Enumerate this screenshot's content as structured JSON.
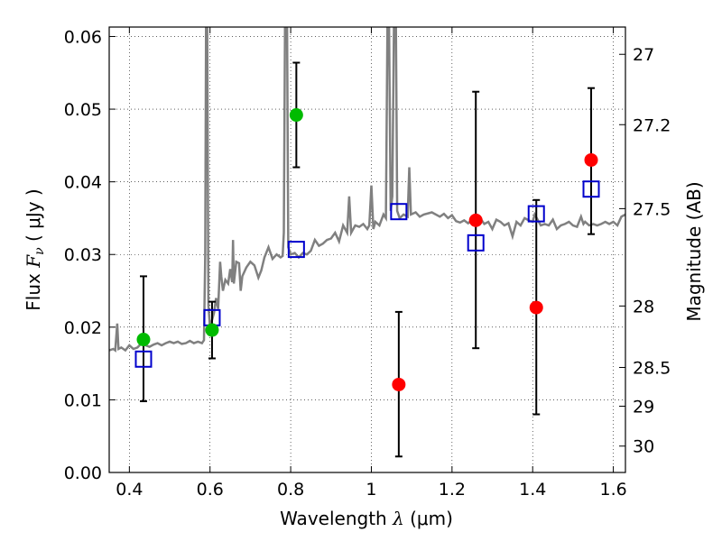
{
  "chart_data": {
    "type": "scatter",
    "xlabel_text": "Wavelength  ",
    "xlabel_symbol": "λ",
    "xlabel_unit": " (μm)",
    "ylabel_text": "Flux  ",
    "ylabel_symbol": "F",
    "ylabel_sub": "ν",
    "ylabel_unit": "  ( μJy )",
    "y2label": "Magnitude (AB)",
    "xlim": [
      0.35,
      1.63
    ],
    "ylim": [
      0.0,
      0.0613
    ],
    "grid": true,
    "x_ticks": [
      {
        "value": 0.4,
        "label": "0.4"
      },
      {
        "value": 0.6,
        "label": "0.6"
      },
      {
        "value": 0.8,
        "label": "0.8"
      },
      {
        "value": 1.0,
        "label": "1"
      },
      {
        "value": 1.2,
        "label": "1.2"
      },
      {
        "value": 1.4,
        "label": "1.4"
      },
      {
        "value": 1.6,
        "label": "1.6"
      }
    ],
    "y_ticks": [
      {
        "value": 0.0,
        "label": "0.00"
      },
      {
        "value": 0.01,
        "label": "0.01"
      },
      {
        "value": 0.02,
        "label": "0.02"
      },
      {
        "value": 0.03,
        "label": "0.03"
      },
      {
        "value": 0.04,
        "label": "0.04"
      },
      {
        "value": 0.05,
        "label": "0.05"
      },
      {
        "value": 0.06,
        "label": "0.06"
      }
    ],
    "y2_ticks": [
      {
        "mag": 27,
        "label": "27"
      },
      {
        "mag": 27.2,
        "label": "27.2"
      },
      {
        "mag": 27.5,
        "label": "27.5"
      },
      {
        "mag": 28,
        "label": "28"
      },
      {
        "mag": 28.5,
        "label": "28.5"
      },
      {
        "mag": 29,
        "label": "29"
      },
      {
        "mag": 30,
        "label": "30"
      }
    ],
    "colors": {
      "model": "#808080",
      "green": "#00bb00",
      "red": "#ff0000",
      "squares": "#0000cc",
      "errorbar": "#000000"
    },
    "model_spectrum": [
      [
        0.35,
        0.0168
      ],
      [
        0.36,
        0.017
      ],
      [
        0.365,
        0.0168
      ],
      [
        0.37,
        0.0205
      ],
      [
        0.373,
        0.017
      ],
      [
        0.38,
        0.0172
      ],
      [
        0.39,
        0.0168
      ],
      [
        0.4,
        0.0175
      ],
      [
        0.41,
        0.017
      ],
      [
        0.42,
        0.0172
      ],
      [
        0.43,
        0.0178
      ],
      [
        0.44,
        0.0175
      ],
      [
        0.45,
        0.0173
      ],
      [
        0.46,
        0.0176
      ],
      [
        0.47,
        0.0178
      ],
      [
        0.48,
        0.0175
      ],
      [
        0.49,
        0.0178
      ],
      [
        0.5,
        0.018
      ],
      [
        0.51,
        0.0178
      ],
      [
        0.52,
        0.018
      ],
      [
        0.53,
        0.0177
      ],
      [
        0.54,
        0.0178
      ],
      [
        0.55,
        0.0181
      ],
      [
        0.56,
        0.0178
      ],
      [
        0.57,
        0.018
      ],
      [
        0.58,
        0.0178
      ],
      [
        0.585,
        0.0182
      ],
      [
        0.588,
        0.03
      ],
      [
        0.59,
        0.0615
      ],
      [
        0.593,
        0.0615
      ],
      [
        0.596,
        0.023
      ],
      [
        0.6,
        0.02
      ],
      [
        0.605,
        0.021
      ],
      [
        0.61,
        0.022
      ],
      [
        0.615,
        0.024
      ],
      [
        0.62,
        0.0225
      ],
      [
        0.625,
        0.029
      ],
      [
        0.628,
        0.027
      ],
      [
        0.632,
        0.025
      ],
      [
        0.638,
        0.0265
      ],
      [
        0.645,
        0.026
      ],
      [
        0.65,
        0.028
      ],
      [
        0.655,
        0.0262
      ],
      [
        0.657,
        0.032
      ],
      [
        0.659,
        0.026
      ],
      [
        0.665,
        0.029
      ],
      [
        0.672,
        0.0288
      ],
      [
        0.676,
        0.025
      ],
      [
        0.68,
        0.027
      ],
      [
        0.69,
        0.0282
      ],
      [
        0.7,
        0.029
      ],
      [
        0.71,
        0.0285
      ],
      [
        0.72,
        0.0268
      ],
      [
        0.727,
        0.0278
      ],
      [
        0.735,
        0.0296
      ],
      [
        0.745,
        0.031
      ],
      [
        0.755,
        0.0294
      ],
      [
        0.765,
        0.03
      ],
      [
        0.775,
        0.0296
      ],
      [
        0.78,
        0.0298
      ],
      [
        0.783,
        0.033
      ],
      [
        0.786,
        0.0615
      ],
      [
        0.791,
        0.0615
      ],
      [
        0.794,
        0.031
      ],
      [
        0.8,
        0.03
      ],
      [
        0.81,
        0.0302
      ],
      [
        0.82,
        0.0296
      ],
      [
        0.83,
        0.0302
      ],
      [
        0.84,
        0.03
      ],
      [
        0.85,
        0.0305
      ],
      [
        0.86,
        0.032
      ],
      [
        0.87,
        0.0312
      ],
      [
        0.88,
        0.0315
      ],
      [
        0.89,
        0.032
      ],
      [
        0.9,
        0.0322
      ],
      [
        0.91,
        0.033
      ],
      [
        0.92,
        0.0318
      ],
      [
        0.93,
        0.034
      ],
      [
        0.94,
        0.033
      ],
      [
        0.945,
        0.038
      ],
      [
        0.95,
        0.033
      ],
      [
        0.96,
        0.034
      ],
      [
        0.97,
        0.0338
      ],
      [
        0.98,
        0.0342
      ],
      [
        0.99,
        0.0335
      ],
      [
        0.995,
        0.034
      ],
      [
        1.0,
        0.0395
      ],
      [
        1.005,
        0.0335
      ],
      [
        1.01,
        0.0345
      ],
      [
        1.02,
        0.034
      ],
      [
        1.03,
        0.0355
      ],
      [
        1.036,
        0.035
      ],
      [
        1.04,
        0.0615
      ],
      [
        1.044,
        0.0615
      ],
      [
        1.048,
        0.036
      ],
      [
        1.052,
        0.038
      ],
      [
        1.056,
        0.0615
      ],
      [
        1.061,
        0.0615
      ],
      [
        1.064,
        0.036
      ],
      [
        1.07,
        0.035
      ],
      [
        1.08,
        0.0355
      ],
      [
        1.09,
        0.0352
      ],
      [
        1.094,
        0.042
      ],
      [
        1.098,
        0.0355
      ],
      [
        1.11,
        0.0358
      ],
      [
        1.12,
        0.0352
      ],
      [
        1.13,
        0.0355
      ],
      [
        1.15,
        0.0358
      ],
      [
        1.17,
        0.0352
      ],
      [
        1.18,
        0.0356
      ],
      [
        1.19,
        0.035
      ],
      [
        1.2,
        0.0354
      ],
      [
        1.21,
        0.0346
      ],
      [
        1.22,
        0.0344
      ],
      [
        1.23,
        0.0347
      ],
      [
        1.24,
        0.0343
      ],
      [
        1.25,
        0.0348
      ],
      [
        1.26,
        0.0346
      ],
      [
        1.27,
        0.035
      ],
      [
        1.28,
        0.0342
      ],
      [
        1.29,
        0.0345
      ],
      [
        1.3,
        0.0335
      ],
      [
        1.31,
        0.0348
      ],
      [
        1.32,
        0.0345
      ],
      [
        1.33,
        0.034
      ],
      [
        1.34,
        0.0343
      ],
      [
        1.35,
        0.0325
      ],
      [
        1.36,
        0.0345
      ],
      [
        1.37,
        0.034
      ],
      [
        1.38,
        0.035
      ],
      [
        1.39,
        0.0347
      ],
      [
        1.4,
        0.0345
      ],
      [
        1.405,
        0.0355
      ],
      [
        1.41,
        0.035
      ],
      [
        1.42,
        0.034
      ],
      [
        1.43,
        0.0342
      ],
      [
        1.44,
        0.034
      ],
      [
        1.45,
        0.0348
      ],
      [
        1.46,
        0.0335
      ],
      [
        1.47,
        0.034
      ],
      [
        1.48,
        0.0342
      ],
      [
        1.49,
        0.0345
      ],
      [
        1.5,
        0.034
      ],
      [
        1.51,
        0.0338
      ],
      [
        1.52,
        0.0352
      ],
      [
        1.526,
        0.0342
      ],
      [
        1.53,
        0.0345
      ],
      [
        1.54,
        0.034
      ],
      [
        1.55,
        0.0342
      ],
      [
        1.56,
        0.034
      ],
      [
        1.57,
        0.0342
      ],
      [
        1.58,
        0.0345
      ],
      [
        1.59,
        0.0342
      ],
      [
        1.6,
        0.0345
      ],
      [
        1.61,
        0.034
      ],
      [
        1.62,
        0.0352
      ],
      [
        1.63,
        0.0355
      ]
    ],
    "green_points": [
      {
        "x": 0.435,
        "y": 0.0183,
        "yerr_low": 0.0098,
        "yerr_high": 0.027
      },
      {
        "x": 0.605,
        "y": 0.0196,
        "yerr_low": 0.0157,
        "yerr_high": 0.0235
      },
      {
        "x": 0.814,
        "y": 0.0492,
        "yerr_low": 0.042,
        "yerr_high": 0.0564
      }
    ],
    "red_points": [
      {
        "x": 1.068,
        "y": 0.0121,
        "yerr_low": 0.0022,
        "yerr_high": 0.0221
      },
      {
        "x": 1.259,
        "y": 0.0347,
        "yerr_low": 0.0171,
        "yerr_high": 0.0524
      },
      {
        "x": 1.409,
        "y": 0.0227,
        "yerr_low": 0.008,
        "yerr_high": 0.0375
      },
      {
        "x": 1.545,
        "y": 0.043,
        "yerr_low": 0.0328,
        "yerr_high": 0.0529
      }
    ],
    "squares": [
      {
        "x": 0.435,
        "y": 0.0156
      },
      {
        "x": 0.605,
        "y": 0.0213
      },
      {
        "x": 0.814,
        "y": 0.0307
      },
      {
        "x": 1.068,
        "y": 0.0359
      },
      {
        "x": 1.259,
        "y": 0.0316
      },
      {
        "x": 1.409,
        "y": 0.0356
      },
      {
        "x": 1.545,
        "y": 0.039
      }
    ]
  }
}
